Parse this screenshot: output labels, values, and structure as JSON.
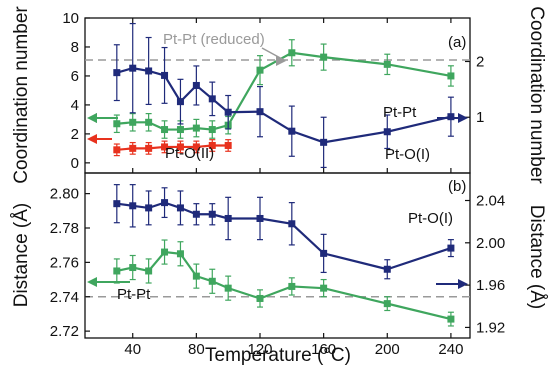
{
  "chart_data": [
    {
      "type": "line",
      "panel_label": "(a)",
      "ylabel": "Coordination number",
      "y2label": "Coordination number",
      "ylim": [
        -0.7,
        10
      ],
      "y2lim": [
        0,
        2.78
      ],
      "yticks": [
        0,
        2,
        4,
        6,
        8,
        10
      ],
      "y2ticks": [
        1,
        2
      ],
      "reference_line": {
        "y": 7.1,
        "label": "Pt-Pt (reduced)",
        "style": "dashed",
        "color": "#9a9a9a"
      },
      "annotations": [
        "Pt-Pt",
        "Pt-O(II)",
        "Pt-O(I)"
      ],
      "series": [
        {
          "name": "Pt-Pt",
          "color": "#3fa65e",
          "axis": "left",
          "x": [
            30,
            40,
            50,
            60,
            70,
            80,
            90,
            100,
            120,
            140,
            160,
            200,
            240
          ],
          "y": [
            2.7,
            2.8,
            2.8,
            2.3,
            2.3,
            2.4,
            2.3,
            2.6,
            6.4,
            7.6,
            7.3,
            6.8,
            6.0
          ],
          "err": [
            0.6,
            0.6,
            0.6,
            0.6,
            0.6,
            0.6,
            0.6,
            0.6,
            1.0,
            0.9,
            0.9,
            0.7,
            0.7
          ]
        },
        {
          "name": "Pt-O(I)",
          "color": "#1f2a7a",
          "axis": "right",
          "x": [
            30,
            40,
            50,
            60,
            70,
            80,
            90,
            100,
            120,
            140,
            160,
            200,
            240
          ],
          "y": [
            1.8,
            1.88,
            1.83,
            1.75,
            1.28,
            1.57,
            1.33,
            1.09,
            1.1,
            0.75,
            0.55,
            0.74,
            1.01
          ],
          "err": [
            0.5,
            0.8,
            0.6,
            0.5,
            0.4,
            0.35,
            0.3,
            0.3,
            0.45,
            0.45,
            0.45,
            0.3,
            0.35
          ]
        },
        {
          "name": "Pt-O(II)",
          "color": "#e8321e",
          "axis": "left",
          "x": [
            30,
            40,
            50,
            60,
            70,
            80,
            90,
            100
          ],
          "y": [
            0.9,
            1.0,
            1.0,
            1.1,
            1.1,
            1.1,
            1.2,
            1.2
          ],
          "err": [
            0.4,
            0.4,
            0.4,
            0.4,
            0.4,
            0.4,
            0.4,
            0.4
          ]
        }
      ]
    },
    {
      "type": "line",
      "panel_label": "(b)",
      "xlabel": "Temperature (°C)",
      "ylabel": "Distance (Å)",
      "y2label": "Distance (Å)",
      "ylim": [
        2.716,
        2.812
      ],
      "y2lim": [
        1.91,
        2.066
      ],
      "yticks": [
        2.72,
        2.74,
        2.76,
        2.78,
        2.8
      ],
      "ytick_labels": [
        "2.72",
        "2.74",
        "2.76",
        "2.78",
        "2.80"
      ],
      "y2ticks": [
        1.92,
        1.96,
        2.0,
        2.04
      ],
      "y2tick_labels": [
        "1.92",
        "1.96",
        "2.00",
        "2.04"
      ],
      "xticks": [
        40,
        80,
        120,
        160,
        200,
        240
      ],
      "xlim": [
        10,
        252
      ],
      "reference_line": {
        "y": 2.74,
        "style": "dashed",
        "color": "#9a9a9a"
      },
      "annotations": [
        "Pt-O(I)",
        "Pt-Pt"
      ],
      "series": [
        {
          "name": "Pt-O(I)",
          "color": "#1f2a7a",
          "axis": "right",
          "x": [
            30,
            40,
            50,
            60,
            70,
            80,
            90,
            100,
            120,
            140,
            160,
            200,
            240
          ],
          "y": [
            2.037,
            2.035,
            2.033,
            2.038,
            2.033,
            2.027,
            2.027,
            2.023,
            2.023,
            2.018,
            1.99,
            1.975,
            1.995
          ],
          "err": [
            0.018,
            0.02,
            0.016,
            0.014,
            0.016,
            0.01,
            0.01,
            0.02,
            0.02,
            0.02,
            0.018,
            0.009,
            0.008
          ]
        },
        {
          "name": "Pt-Pt",
          "color": "#3fa65e",
          "axis": "left",
          "x": [
            30,
            40,
            50,
            60,
            70,
            80,
            90,
            100,
            120,
            140,
            160,
            200,
            240
          ],
          "y": [
            2.755,
            2.757,
            2.755,
            2.766,
            2.765,
            2.752,
            2.749,
            2.745,
            2.739,
            2.746,
            2.745,
            2.736,
            2.727
          ],
          "err": [
            0.007,
            0.007,
            0.007,
            0.007,
            0.007,
            0.007,
            0.007,
            0.007,
            0.005,
            0.005,
            0.005,
            0.004,
            0.004
          ]
        }
      ]
    }
  ],
  "colors": {
    "pt_pt": "#3fa65e",
    "pt_o1": "#1f2a7a",
    "pt_o2": "#e8321e",
    "reference": "#9a9a9a"
  }
}
